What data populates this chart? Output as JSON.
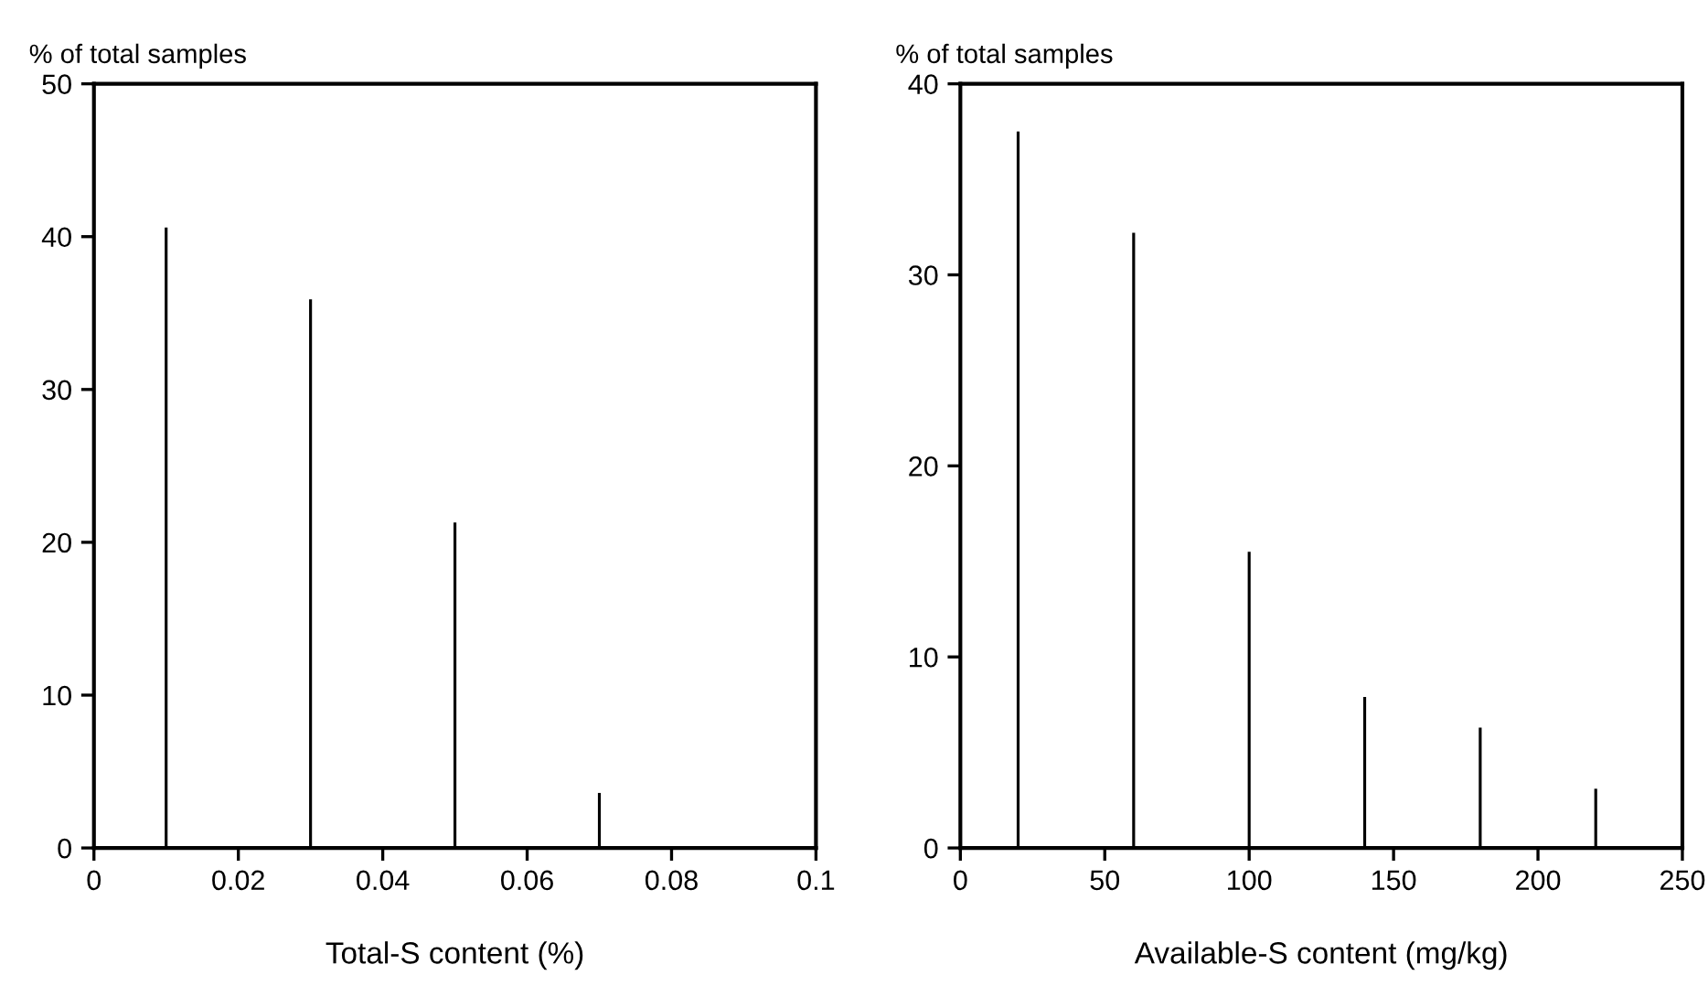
{
  "chart_data": [
    {
      "type": "bar",
      "ylabel": "% of total samples",
      "xlabel": "Total-S content (%)",
      "x": [
        0.01,
        0.03,
        0.05,
        0.07
      ],
      "values": [
        40.6,
        35.9,
        21.3,
        3.6
      ],
      "color": "#000000",
      "xlim": [
        0,
        0.1
      ],
      "xticks": [
        0,
        0.02,
        0.04,
        0.06,
        0.08,
        0.1
      ],
      "ylim": [
        0,
        50
      ],
      "yticks": [
        0,
        10,
        20,
        30,
        40,
        50
      ],
      "grid": false,
      "legend": false
    },
    {
      "type": "bar",
      "ylabel": "% of total samples",
      "xlabel": "Available-S content (mg/kg)",
      "x": [
        20,
        60,
        100,
        140,
        180,
        220
      ],
      "values": [
        37.5,
        32.2,
        15.5,
        7.9,
        6.3,
        3.1
      ],
      "color": "#000000",
      "xlim": [
        0,
        250
      ],
      "xticks": [
        0,
        50,
        100,
        150,
        200,
        250
      ],
      "ylim": [
        0,
        40
      ],
      "yticks": [
        0,
        10,
        20,
        30,
        40
      ],
      "grid": false,
      "legend": false
    }
  ]
}
